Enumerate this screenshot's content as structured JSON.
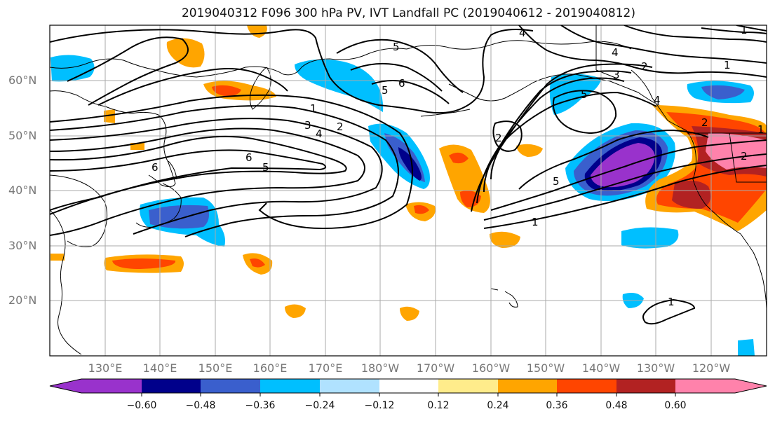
{
  "title": "2019040312 F096 300 hPa PV, IVT Landfall PC (2019040612 - 2019040812)",
  "lat_labels": [
    "60°N",
    "50°N",
    "40°N",
    "30°N",
    "20°N"
  ],
  "lon_labels": [
    "130°E",
    "140°E",
    "150°E",
    "160°E",
    "170°E",
    "180°W",
    "170°W",
    "160°W",
    "150°W",
    "140°W",
    "130°W",
    "120°W"
  ],
  "contour_labels": [
    "1",
    "2",
    "3",
    "4",
    "5",
    "6",
    "5",
    "4",
    "2",
    "1",
    "2",
    "3",
    "5",
    "5",
    "1",
    "1",
    "2",
    "1",
    "4",
    "6",
    "6",
    "5",
    "1",
    "2",
    "4"
  ],
  "colorbar": {
    "ticks": [
      "−0.60",
      "−0.48",
      "−0.36",
      "−0.24",
      "−0.12",
      "0.12",
      "0.24",
      "0.36",
      "0.48",
      "0.60"
    ],
    "colors": [
      "#9932cc",
      "#00008b",
      "#3a5fcd",
      "#00bfff",
      "#b0e2ff",
      "#ffffff",
      "#ffec8b",
      "#ffa500",
      "#ff4500",
      "#b22222",
      "#ff82ab"
    ]
  }
}
